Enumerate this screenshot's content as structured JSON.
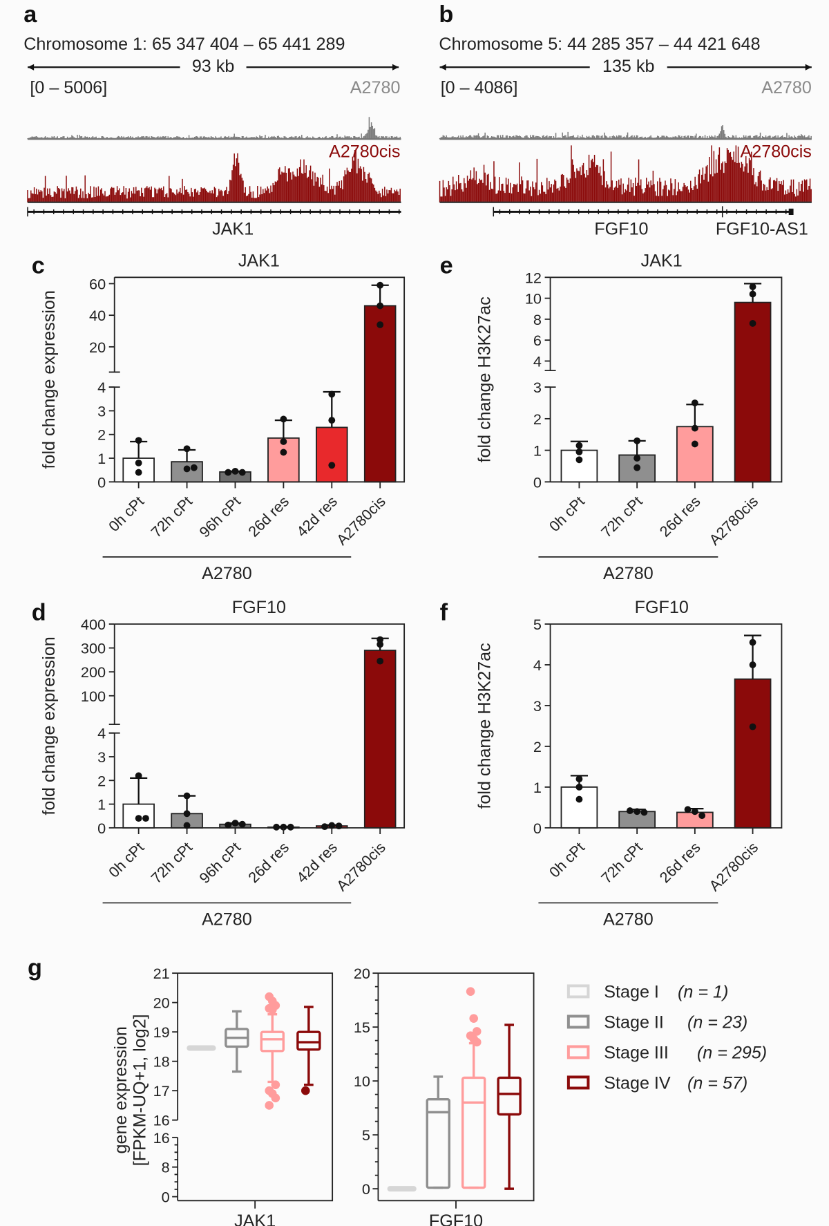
{
  "panels": {
    "a": {
      "label": "a",
      "coords": "Chromosome 1: 65 347 404 – 65 441 289",
      "span": "93 kb",
      "range": "[0 – 5006]",
      "track1": "A2780",
      "track2": "A2780cis",
      "genes": [
        "JAK1"
      ]
    },
    "b": {
      "label": "b",
      "coords": "Chromosome 5: 44 285 357 – 44 421 648",
      "span": "135 kb",
      "range": "[0 – 4086]",
      "track1": "A2780",
      "track2": "A2780cis",
      "genes": [
        "FGF10",
        "FGF10-AS1"
      ]
    },
    "g_label": "g"
  },
  "colors": {
    "track1": "#7a7a7a",
    "track2": "#8b0a0a",
    "white": "#ffffff",
    "gray": "#8f8f8f",
    "darkgray": "#707070",
    "pink": "#ff9c9c",
    "red": "#e8292c",
    "darkred": "#8b0a0a",
    "lightgray": "#d6d6d6"
  },
  "chart_data": [
    {
      "id": "c",
      "label": "c",
      "type": "bar",
      "title": "JAK1",
      "ylabel": "fold change expression",
      "categories": [
        "0h cPt",
        "72h cPt",
        "96h cPt",
        "26d res",
        "42d res",
        "A2780cis"
      ],
      "group": {
        "label": "A2780",
        "count": 5
      },
      "values": [
        1.0,
        0.85,
        0.42,
        1.85,
        2.3,
        46
      ],
      "error_upper": [
        1.7,
        1.35,
        0.45,
        2.6,
        3.8,
        59
      ],
      "points": [
        [
          1.75,
          0.8,
          0.4
        ],
        [
          1.4,
          0.55,
          0.6
        ],
        [
          0.4,
          0.45,
          0.4
        ],
        [
          2.65,
          1.7,
          1.25
        ],
        [
          3.7,
          2.6,
          0.7
        ],
        [
          59,
          46,
          34
        ]
      ],
      "fills": [
        "white",
        "gray",
        "darkgray",
        "pink",
        "red",
        "darkred"
      ],
      "yticks_lower": [
        "0",
        "1",
        "2",
        "3",
        "4"
      ],
      "yticks_upper": [
        "20",
        "40",
        "60"
      ],
      "ylim_lower": [
        0,
        4
      ],
      "ylim_upper": [
        10,
        60
      ],
      "axis_break": true
    },
    {
      "id": "e",
      "label": "e",
      "type": "bar",
      "title": "JAK1",
      "ylabel": "fold change H3K27ac",
      "categories": [
        "0h cPt",
        "72h cPt",
        "26d res",
        "A2780cis"
      ],
      "group": {
        "label": "A2780",
        "count": 3
      },
      "values": [
        1.0,
        0.85,
        1.75,
        9.6
      ],
      "error_upper": [
        1.28,
        1.3,
        2.45,
        11.4
      ],
      "points": [
        [
          1.15,
          0.95,
          0.7
        ],
        [
          1.3,
          0.75,
          0.45
        ],
        [
          2.5,
          1.7,
          1.2
        ],
        [
          11.1,
          10.4,
          7.6
        ]
      ],
      "fills": [
        "white",
        "gray",
        "pink",
        "darkred"
      ],
      "yticks_lower": [
        "0",
        "1",
        "2",
        "3"
      ],
      "yticks_upper": [
        "4",
        "6",
        "8",
        "10",
        "12"
      ],
      "ylim_lower": [
        0,
        3
      ],
      "ylim_upper": [
        4,
        12
      ],
      "axis_break": true
    },
    {
      "id": "d",
      "label": "d",
      "type": "bar",
      "title": "FGF10",
      "ylabel": "fold change expression",
      "categories": [
        "0h cPt",
        "72h cPt",
        "96h cPt",
        "26d res",
        "42d res",
        "A2780cis"
      ],
      "group": {
        "label": "A2780",
        "count": 5
      },
      "values": [
        1.0,
        0.6,
        0.15,
        0.03,
        0.08,
        290
      ],
      "error_upper": [
        2.1,
        1.35,
        0.2,
        0.05,
        0.12,
        340
      ],
      "points": [
        [
          2.2,
          0.4,
          0.4
        ],
        [
          1.35,
          0.6,
          0.1
        ],
        [
          0.12,
          0.2,
          0.15
        ],
        [
          0.03,
          0.03,
          0.03
        ],
        [
          0.05,
          0.1,
          0.08
        ],
        [
          335,
          315,
          245
        ]
      ],
      "fills": [
        "white",
        "gray",
        "darkgray",
        "pink",
        "red",
        "darkred"
      ],
      "yticks_lower": [
        "0",
        "1",
        "2",
        "3",
        "4"
      ],
      "yticks_upper": [
        "100",
        "200",
        "300",
        "400"
      ],
      "ylim_lower": [
        0,
        4
      ],
      "ylim_upper": [
        20,
        400
      ],
      "axis_break": true
    },
    {
      "id": "f",
      "label": "f",
      "type": "bar",
      "title": "FGF10",
      "ylabel": "fold change H3K27ac",
      "categories": [
        "0h cPt",
        "72h cPt",
        "26d res",
        "A2780cis"
      ],
      "group": {
        "label": "A2780",
        "count": 3
      },
      "values": [
        1.0,
        0.4,
        0.38,
        3.65
      ],
      "error_upper": [
        1.28,
        0.45,
        0.47,
        4.72
      ],
      "points": [
        [
          1.2,
          1.0,
          0.7
        ],
        [
          0.42,
          0.4,
          0.38
        ],
        [
          0.45,
          0.4,
          0.3
        ],
        [
          4.55,
          4.0,
          2.48
        ]
      ],
      "fills": [
        "white",
        "gray",
        "pink",
        "darkred"
      ],
      "yticks_lower": [
        "0",
        "1",
        "2",
        "3",
        "4",
        "5"
      ],
      "ylim_lower": [
        0,
        5
      ],
      "axis_break": false
    },
    {
      "id": "g",
      "type": "box",
      "ylabel": [
        "gene expression",
        "[FPKM-UQ+1, log2]"
      ],
      "legend": [
        {
          "name": "Stage I",
          "n": "(n = 1)",
          "color": "lightgray"
        },
        {
          "name": "Stage II",
          "n": "(n = 23)",
          "color": "gray"
        },
        {
          "name": "Stage III",
          "n": "(n = 295)",
          "color": "pink"
        },
        {
          "name": "Stage IV",
          "n": "(n = 57)",
          "color": "darkred"
        }
      ],
      "legend_placement": "right",
      "plots": [
        {
          "gene": "JAK1",
          "yticks_upper": [
            "16",
            "17",
            "18",
            "19",
            "20",
            "21"
          ],
          "yticks_lower": [
            "0",
            "8",
            "16"
          ],
          "ylim_upper": [
            16,
            21
          ],
          "ylim_lower": [
            0,
            16
          ],
          "boxes": [
            {
              "stage": "Stage I",
              "median": 18.45
            },
            {
              "stage": "Stage II",
              "min": 17.65,
              "q1": 18.5,
              "median": 18.8,
              "q3": 19.1,
              "max": 19.7,
              "outliers": []
            },
            {
              "stage": "Stage III",
              "min": 17.3,
              "q1": 18.35,
              "median": 18.75,
              "q3": 19.0,
              "max": 19.6,
              "outliers": [
                20.2,
                20.05,
                19.9,
                19.8,
                19.75,
                17.2,
                17.0,
                16.9,
                16.75,
                16.5
              ]
            },
            {
              "stage": "Stage IV",
              "min": 17.2,
              "q1": 18.4,
              "median": 18.65,
              "q3": 19.0,
              "max": 19.85,
              "outliers": [
                17.0
              ]
            }
          ]
        },
        {
          "gene": "FGF10",
          "yticks": [
            "0",
            "5",
            "10",
            "15",
            "20"
          ],
          "ylim": [
            0,
            20
          ],
          "boxes": [
            {
              "stage": "Stage I",
              "median": 0
            },
            {
              "stage": "Stage II",
              "min": 0.1,
              "q1": 0.1,
              "median": 7.1,
              "q3": 8.3,
              "max": 10.4,
              "outliers": []
            },
            {
              "stage": "Stage III",
              "min": 0.1,
              "q1": 0.1,
              "median": 8.0,
              "q3": 10.3,
              "max": 13.5,
              "outliers": [
                18.3,
                15.8,
                14.6,
                14.2,
                13.9,
                13.6
              ]
            },
            {
              "stage": "Stage IV",
              "min": 0,
              "q1": 6.9,
              "median": 8.8,
              "q3": 10.3,
              "max": 15.2,
              "outliers": []
            }
          ]
        }
      ]
    }
  ]
}
